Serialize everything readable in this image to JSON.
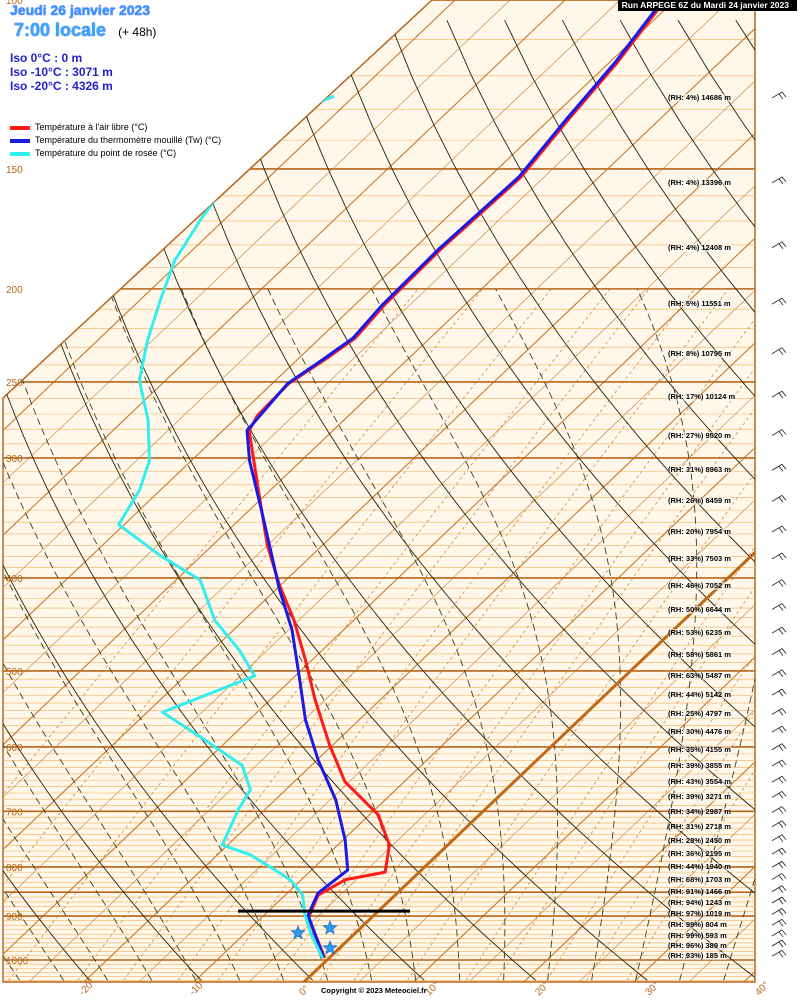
{
  "header": {
    "date": "Jeudi 26 janvier 2023",
    "time": "7:00 locale",
    "lead": "(+ 48h)",
    "run": "Run ARPEGE 6Z du Mardi 24 janvier 2023"
  },
  "iso": [
    "Iso 0°C : 0 m",
    "Iso -10°C : 3071 m",
    "Iso -20°C : 4326 m"
  ],
  "legend": [
    {
      "label": "Température à l'air libre (°C)",
      "color": "#ff1a1a"
    },
    {
      "label": "Température du thermomètre mouillé (Tw) (°C)",
      "color": "#1a1ae6"
    },
    {
      "label": "Température du point de rosée (°C)",
      "color": "#33eeee"
    }
  ],
  "levels": [
    {
      "label": "(RH: 4%) 14686 m",
      "height": 14686
    },
    {
      "label": "(RH: 4%) 13396 m",
      "height": 13396
    },
    {
      "label": "(RH: 4%) 12408 m",
      "height": 12408
    },
    {
      "label": "(RH: 5%) 11551 m",
      "height": 11551
    },
    {
      "label": "(RH: 8%) 10795 m",
      "height": 10795
    },
    {
      "label": "(RH: 17%) 10124 m",
      "height": 10124
    },
    {
      "label": "(RH: 27%) 9520 m",
      "height": 9520
    },
    {
      "label": "(RH: 31%) 8963 m",
      "height": 8963
    },
    {
      "label": "(RH: 26%) 8459 m",
      "height": 8459
    },
    {
      "label": "(RH: 20%) 7954 m",
      "height": 7954
    },
    {
      "label": "(RH: 33%) 7503 m",
      "height": 7503
    },
    {
      "label": "(RH: 46%) 7052 m",
      "height": 7052
    },
    {
      "label": "(RH: 50%) 6644 m",
      "height": 6644
    },
    {
      "label": "(RH: 53%) 6235 m",
      "height": 6235
    },
    {
      "label": "(RH: 58%) 5861 m",
      "height": 5861
    },
    {
      "label": "(RH: 63%) 5487 m",
      "height": 5487
    },
    {
      "label": "(RH: 44%) 5142 m",
      "height": 5142
    },
    {
      "label": "(RH: 25%) 4797 m",
      "height": 4797
    },
    {
      "label": "(RH: 30%) 4476 m",
      "height": 4476
    },
    {
      "label": "(RH: 35%) 4155 m",
      "height": 4155
    },
    {
      "label": "(RH: 39%) 3855 m",
      "height": 3855
    },
    {
      "label": "(RH: 43%) 3554 m",
      "height": 3554
    },
    {
      "label": "(RH: 39%) 3271 m",
      "height": 3271
    },
    {
      "label": "(RH: 34%) 2987 m",
      "height": 2987
    },
    {
      "label": "(RH: 31%) 2718 m",
      "height": 2718
    },
    {
      "label": "(RH: 28%) 2450 m",
      "height": 2450
    },
    {
      "label": "(RH: 36%) 2195 m",
      "height": 2195
    },
    {
      "label": "(RH: 44%) 1940 m",
      "height": 1940
    },
    {
      "label": "(RH: 68%) 1703 m",
      "height": 1703
    },
    {
      "label": "(RH: 91%) 1466 m",
      "height": 1466
    },
    {
      "label": "(RH: 94%) 1243 m",
      "height": 1243
    },
    {
      "label": "(RH: 97%) 1019 m",
      "height": 1019
    },
    {
      "label": "(RH: 99%) 804 m",
      "height": 804
    },
    {
      "label": "(RH: 99%) 593 m",
      "height": 593
    },
    {
      "label": "(RH: 96%) 389 m",
      "height": 389
    },
    {
      "label": "(RH: 93%) 185 m",
      "height": 185
    }
  ],
  "copyright": "Copyright © 2023 Meteociel.fr",
  "colors": {
    "isotherm": "#c8792a",
    "zero_isotherm": "#c06a18",
    "isobar": "#b8661a",
    "dry_adiabat": "#222211",
    "moist_adiabat": "#334422",
    "background": "#fff8ea"
  },
  "chart_data": {
    "type": "line",
    "subtype": "skew-T log-P",
    "x_ticks": [
      "-20°",
      "-10°",
      "0°",
      "10°",
      "20°",
      "30°",
      "40°"
    ],
    "x_tick_values": [
      -20,
      -10,
      0,
      10,
      20,
      30,
      40
    ],
    "pressure_ticks": [
      "1000",
      "900",
      "800",
      "700",
      "600",
      "500",
      "400",
      "300",
      "250",
      "200",
      "150",
      "100"
    ],
    "pressure_tick_values": [
      1000,
      900,
      800,
      700,
      600,
      500,
      400,
      300,
      250,
      200,
      150,
      100
    ],
    "p_range": [
      1000,
      100
    ],
    "y_scale": "log",
    "series": [
      {
        "name": "Température à l'air libre (°C)",
        "color": "#ff1a1a",
        "p": [
          995,
          904,
          856,
          825,
          810,
          759,
          706,
          652,
          597,
          536,
          487,
          443,
          407,
          370,
          324,
          281,
          271,
          251,
          237,
          225,
          208,
          182,
          153,
          133,
          116,
          100
        ],
        "t": [
          -0.4,
          -5.7,
          -7.0,
          -6.0,
          -3.1,
          -5.3,
          -9.2,
          -15.4,
          -20.3,
          -25.9,
          -30.6,
          -35.4,
          -40.1,
          -45.0,
          -51.1,
          -57.6,
          -58.3,
          -58.5,
          -57.5,
          -56.8,
          -57.3,
          -57.5,
          -57.1,
          -58.3,
          -59.3,
          -60.9
        ]
      },
      {
        "name": "Température du thermomètre mouillé (Tw) (°C)",
        "color": "#1a1ae6",
        "p": [
          995,
          898,
          852,
          806,
          750,
          681,
          619,
          562,
          511,
          453,
          412,
          340,
          302,
          281,
          251,
          237,
          225,
          208,
          182,
          153,
          133,
          116,
          100
        ],
        "t": [
          -0.5,
          -6.0,
          -7.2,
          -6.7,
          -9.8,
          -14.5,
          -19.9,
          -24.9,
          -29.2,
          -34.7,
          -39.6,
          -48.9,
          -54.7,
          -57.8,
          -58.6,
          -57.7,
          -57.0,
          -57.5,
          -57.7,
          -57.3,
          -58.5,
          -59.5,
          -61.1
        ]
      },
      {
        "name": "Température du point de rosée (°C)",
        "color": "#33eeee",
        "p": [
          995,
          942,
          894,
          856,
          825,
          806,
          777,
          759,
          698,
          665,
          627,
          590,
          552,
          506,
          476,
          443,
          402,
          379,
          352,
          324,
          302,
          274,
          249,
          226,
          205,
          187,
          169,
          154,
          140,
          130,
          126
        ],
        "t": [
          -0.6,
          -3.8,
          -6.5,
          -8.4,
          -11.0,
          -13.3,
          -17.0,
          -20.5,
          -22.4,
          -23.2,
          -26.3,
          -32.1,
          -38.6,
          -33.7,
          -37.5,
          -42.6,
          -47.8,
          -53.8,
          -60.5,
          -61.9,
          -63.8,
          -67.8,
          -72.4,
          -75.5,
          -78.2,
          -80.6,
          -82.2,
          -83.3,
          -83.5,
          -83.6,
          -81.8
        ]
      }
    ],
    "annotations": {
      "freezing_level_line_p": 900,
      "snow_symbols": 3
    }
  }
}
